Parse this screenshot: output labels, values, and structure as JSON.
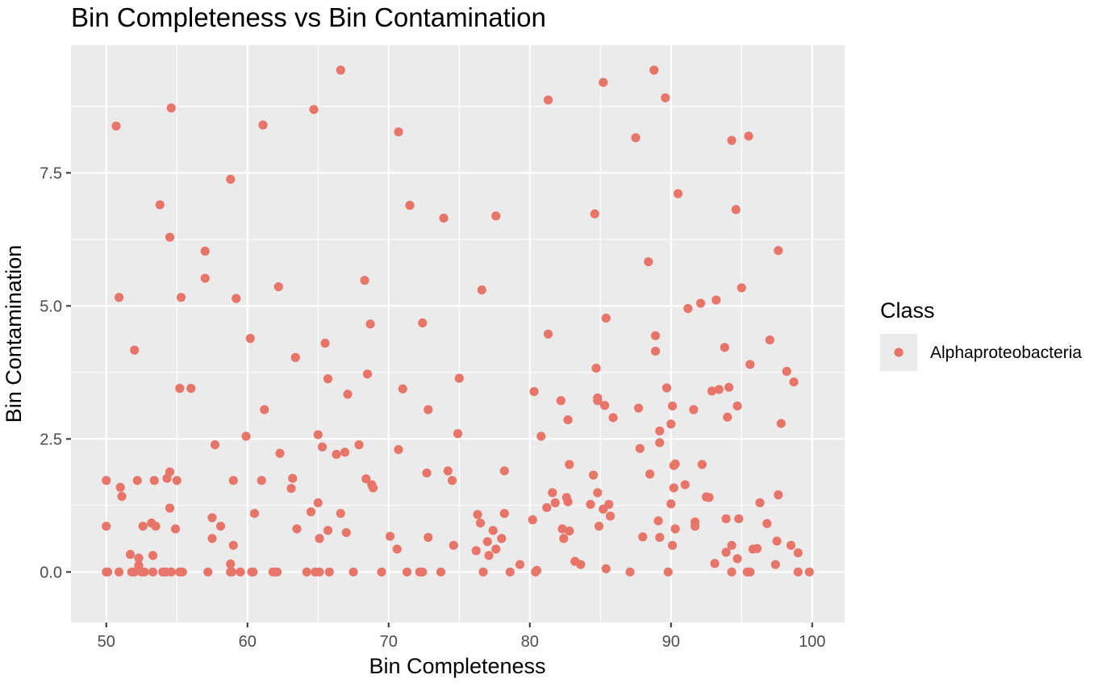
{
  "chart_data": {
    "type": "scatter",
    "title": "Bin Completeness vs Bin Contamination",
    "xlabel": "Bin Completeness",
    "ylabel": "Bin Contamination",
    "xlim": [
      47.5,
      102.3
    ],
    "ylim": [
      -0.95,
      9.9
    ],
    "x_ticks": [
      50,
      60,
      70,
      80,
      90,
      100
    ],
    "x_tick_labels": [
      "50",
      "60",
      "70",
      "80",
      "90",
      "100"
    ],
    "y_ticks": [
      0,
      2.5,
      5,
      7.5
    ],
    "y_tick_labels": [
      "0.0",
      "2.5",
      "5.0",
      "7.5"
    ],
    "grid": true,
    "legend": {
      "title": "Class",
      "position": "right",
      "entries": [
        {
          "label": "Alphaproteobacteria",
          "color": "#e8756a"
        }
      ]
    },
    "colors": {
      "panel": "#ebebeb",
      "grid": "#ffffff",
      "point": "#e8756a"
    },
    "series": [
      {
        "name": "Alphaproteobacteria",
        "points": [
          [
            50.0,
            0
          ],
          [
            50.1,
            0
          ],
          [
            50.0,
            1.72
          ],
          [
            50.0,
            0.86
          ],
          [
            50.7,
            8.38
          ],
          [
            50.9,
            5.16
          ],
          [
            51.0,
            1.59
          ],
          [
            51.1,
            1.42
          ],
          [
            50.9,
            0
          ],
          [
            51.7,
            0.33
          ],
          [
            51.8,
            0
          ],
          [
            52.0,
            0
          ],
          [
            52.0,
            4.17
          ],
          [
            52.2,
            1.72
          ],
          [
            52.3,
            0.26
          ],
          [
            52.3,
            0.12
          ],
          [
            52.5,
            0
          ],
          [
            52.6,
            0.86
          ],
          [
            52.7,
            0
          ],
          [
            53.2,
            0.92
          ],
          [
            53.3,
            0.31
          ],
          [
            53.3,
            0
          ],
          [
            53.4,
            1.72
          ],
          [
            53.5,
            0.86
          ],
          [
            53.8,
            6.9
          ],
          [
            54.0,
            0
          ],
          [
            54.2,
            0
          ],
          [
            54.3,
            1.76
          ],
          [
            54.5,
            1.88
          ],
          [
            54.5,
            6.29
          ],
          [
            54.6,
            8.72
          ],
          [
            54.5,
            1.2
          ],
          [
            54.6,
            0
          ],
          [
            54.9,
            0.81
          ],
          [
            55.0,
            1.72
          ],
          [
            55.2,
            3.45
          ],
          [
            55.2,
            0
          ],
          [
            55.3,
            5.16
          ],
          [
            55.4,
            0
          ],
          [
            56.0,
            3.45
          ],
          [
            57.0,
            6.03
          ],
          [
            57.0,
            5.52
          ],
          [
            57.2,
            0
          ],
          [
            57.5,
            1.02
          ],
          [
            57.5,
            0.63
          ],
          [
            57.7,
            2.39
          ],
          [
            58.1,
            0.86
          ],
          [
            58.8,
            7.38
          ],
          [
            58.8,
            0.15
          ],
          [
            58.8,
            0
          ],
          [
            58.9,
            0
          ],
          [
            59.0,
            1.72
          ],
          [
            59.0,
            0.5
          ],
          [
            59.2,
            5.14
          ],
          [
            59.5,
            0
          ],
          [
            59.9,
            2.55
          ],
          [
            60.2,
            4.39
          ],
          [
            60.3,
            0
          ],
          [
            60.4,
            0
          ],
          [
            60.5,
            1.1
          ],
          [
            61.0,
            1.72
          ],
          [
            61.1,
            8.4
          ],
          [
            61.2,
            3.05
          ],
          [
            61.8,
            0
          ],
          [
            62.0,
            0
          ],
          [
            62.1,
            0
          ],
          [
            62.2,
            5.36
          ],
          [
            62.3,
            2.23
          ],
          [
            63.1,
            1.57
          ],
          [
            63.2,
            1.76
          ],
          [
            63.4,
            4.03
          ],
          [
            63.5,
            0.81
          ],
          [
            64.2,
            0
          ],
          [
            64.5,
            1.13
          ],
          [
            64.7,
            8.69
          ],
          [
            64.8,
            0
          ],
          [
            65.0,
            2.58
          ],
          [
            65.0,
            1.3
          ],
          [
            65.1,
            0
          ],
          [
            65.1,
            0.63
          ],
          [
            65.3,
            2.35
          ],
          [
            65.5,
            4.3
          ],
          [
            65.7,
            0.78
          ],
          [
            65.7,
            3.63
          ],
          [
            65.8,
            0
          ],
          [
            66.3,
            2.21
          ],
          [
            66.6,
            1.1
          ],
          [
            66.6,
            9.43
          ],
          [
            66.9,
            2.25
          ],
          [
            67.0,
            0.74
          ],
          [
            67.1,
            3.34
          ],
          [
            67.5,
            0
          ],
          [
            67.9,
            2.39
          ],
          [
            68.3,
            5.48
          ],
          [
            68.4,
            1.75
          ],
          [
            68.5,
            3.72
          ],
          [
            68.7,
            4.66
          ],
          [
            68.8,
            1.64
          ],
          [
            68.9,
            1.58
          ],
          [
            69.5,
            0
          ],
          [
            70.1,
            0.67
          ],
          [
            70.6,
            0.43
          ],
          [
            70.7,
            8.27
          ],
          [
            70.7,
            2.3
          ],
          [
            71.0,
            3.44
          ],
          [
            71.3,
            0
          ],
          [
            71.5,
            6.89
          ],
          [
            72.2,
            0
          ],
          [
            72.4,
            4.68
          ],
          [
            72.4,
            0
          ],
          [
            72.7,
            1.86
          ],
          [
            72.8,
            3.05
          ],
          [
            72.8,
            0.65
          ],
          [
            73.7,
            0
          ],
          [
            73.9,
            6.65
          ],
          [
            74.2,
            1.9
          ],
          [
            74.5,
            1.72
          ],
          [
            74.6,
            0.5
          ],
          [
            74.9,
            2.6
          ],
          [
            75.0,
            3.64
          ],
          [
            76.2,
            0.4
          ],
          [
            76.3,
            1.08
          ],
          [
            76.5,
            0.92
          ],
          [
            76.6,
            5.3
          ],
          [
            76.7,
            0
          ],
          [
            77.0,
            0.57
          ],
          [
            77.1,
            0.31
          ],
          [
            77.4,
            0.78
          ],
          [
            77.6,
            0.43
          ],
          [
            77.6,
            6.69
          ],
          [
            78.0,
            0.63
          ],
          [
            78.2,
            1.9
          ],
          [
            78.2,
            1.1
          ],
          [
            78.6,
            0
          ],
          [
            79.3,
            0.14
          ],
          [
            80.2,
            0.98
          ],
          [
            80.3,
            3.39
          ],
          [
            80.4,
            0
          ],
          [
            80.5,
            0.03
          ],
          [
            80.8,
            2.55
          ],
          [
            81.2,
            1.21
          ],
          [
            81.3,
            8.87
          ],
          [
            81.3,
            4.47
          ],
          [
            81.6,
            1.49
          ],
          [
            81.8,
            1.3
          ],
          [
            82.2,
            3.22
          ],
          [
            82.3,
            0.81
          ],
          [
            82.4,
            0.63
          ],
          [
            82.6,
            1.4
          ],
          [
            82.7,
            2.86
          ],
          [
            82.7,
            1.32
          ],
          [
            82.8,
            0.77
          ],
          [
            82.8,
            2.02
          ],
          [
            83.2,
            0.2
          ],
          [
            83.6,
            0.14
          ],
          [
            84.3,
            1.27
          ],
          [
            84.5,
            1.82
          ],
          [
            84.6,
            6.73
          ],
          [
            84.7,
            3.83
          ],
          [
            84.8,
            3.27
          ],
          [
            84.8,
            3.22
          ],
          [
            84.8,
            1.49
          ],
          [
            84.9,
            0.86
          ],
          [
            85.2,
            1.18
          ],
          [
            85.2,
            9.2
          ],
          [
            85.3,
            3.13
          ],
          [
            85.4,
            4.77
          ],
          [
            85.4,
            0.06
          ],
          [
            85.6,
            1.27
          ],
          [
            85.7,
            1.05
          ],
          [
            85.9,
            2.9
          ],
          [
            87.1,
            0
          ],
          [
            87.5,
            8.16
          ],
          [
            87.7,
            3.08
          ],
          [
            87.8,
            2.32
          ],
          [
            88.0,
            0.66
          ],
          [
            88.4,
            5.83
          ],
          [
            88.5,
            1.84
          ],
          [
            88.8,
            9.43
          ],
          [
            88.9,
            4.15
          ],
          [
            88.9,
            4.44
          ],
          [
            89.1,
            0.96
          ],
          [
            89.2,
            0.65
          ],
          [
            89.2,
            2.43
          ],
          [
            89.2,
            2.65
          ],
          [
            89.6,
            8.91
          ],
          [
            89.7,
            3.46
          ],
          [
            89.8,
            0
          ],
          [
            90.0,
            2.78
          ],
          [
            90.0,
            1.28
          ],
          [
            90.1,
            3.12
          ],
          [
            90.1,
            0.5
          ],
          [
            90.2,
            1.58
          ],
          [
            90.2,
            2.0
          ],
          [
            90.3,
            2.03
          ],
          [
            90.3,
            0.81
          ],
          [
            90.5,
            7.11
          ],
          [
            91.0,
            1.64
          ],
          [
            91.2,
            4.95
          ],
          [
            91.6,
            3.05
          ],
          [
            91.7,
            0.86
          ],
          [
            91.7,
            0.94
          ],
          [
            92.1,
            5.05
          ],
          [
            92.2,
            2.02
          ],
          [
            92.5,
            1.41
          ],
          [
            92.7,
            1.4
          ],
          [
            92.9,
            3.4
          ],
          [
            93.1,
            0.16
          ],
          [
            93.2,
            5.11
          ],
          [
            93.4,
            3.43
          ],
          [
            93.8,
            4.22
          ],
          [
            93.9,
            1.0
          ],
          [
            93.9,
            0.37
          ],
          [
            94.0,
            2.91
          ],
          [
            94.1,
            3.47
          ],
          [
            94.3,
            8.11
          ],
          [
            94.3,
            0.5
          ],
          [
            94.3,
            0
          ],
          [
            94.6,
            6.81
          ],
          [
            94.7,
            3.12
          ],
          [
            94.7,
            0.25
          ],
          [
            94.8,
            1.0
          ],
          [
            95.0,
            5.34
          ],
          [
            95.4,
            0
          ],
          [
            95.5,
            8.19
          ],
          [
            95.6,
            0
          ],
          [
            95.6,
            3.9
          ],
          [
            95.8,
            0.43
          ],
          [
            96.1,
            0.44
          ],
          [
            96.3,
            1.3
          ],
          [
            96.8,
            0.91
          ],
          [
            97.0,
            4.36
          ],
          [
            97.4,
            0.14
          ],
          [
            97.5,
            0.58
          ],
          [
            97.6,
            6.04
          ],
          [
            97.6,
            1.45
          ],
          [
            97.8,
            2.79
          ],
          [
            98.2,
            3.77
          ],
          [
            98.5,
            0.5
          ],
          [
            98.7,
            3.57
          ],
          [
            99.0,
            0
          ],
          [
            99.0,
            0.36
          ],
          [
            99.8,
            0
          ]
        ]
      }
    ]
  }
}
